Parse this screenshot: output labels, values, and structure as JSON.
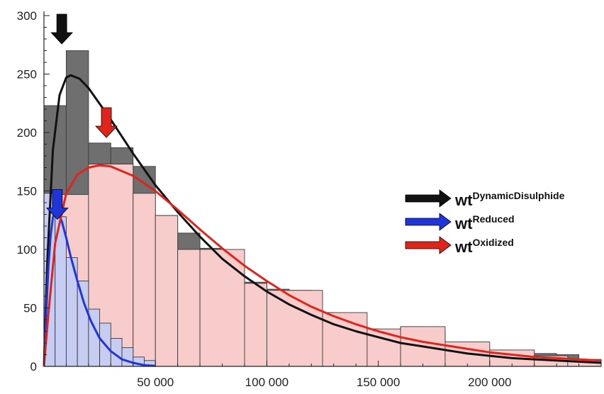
{
  "chart_data": {
    "type": "bar",
    "x_ticks": [
      {
        "value": 50000,
        "label": "50 000"
      },
      {
        "value": 100000,
        "label": "100 000"
      },
      {
        "value": 150000,
        "label": "150 000"
      },
      {
        "value": 200000,
        "label": "200 000"
      }
    ],
    "y_ticks": [
      {
        "value": 0,
        "label": "0"
      },
      {
        "value": 50,
        "label": "50"
      },
      {
        "value": 100,
        "label": "100"
      },
      {
        "value": 150,
        "label": "150"
      },
      {
        "value": 200,
        "label": "200"
      },
      {
        "value": 250,
        "label": "250"
      },
      {
        "value": 300,
        "label": "300"
      }
    ],
    "xlim": [
      0,
      250000
    ],
    "ylim": [
      0,
      300
    ],
    "grid": false,
    "histograms": [
      {
        "key": "dynamic",
        "color": "#6f6f6f",
        "bins": [
          {
            "x0": 0,
            "x1": 10000,
            "value": 223
          },
          {
            "x0": 10000,
            "x1": 20000,
            "value": 270
          },
          {
            "x0": 20000,
            "x1": 30000,
            "value": 191
          },
          {
            "x0": 30000,
            "x1": 40000,
            "value": 187
          },
          {
            "x0": 40000,
            "x1": 50000,
            "value": 171
          },
          {
            "x0": 50000,
            "x1": 60000,
            "value": 129
          },
          {
            "x0": 60000,
            "x1": 70000,
            "value": 114
          },
          {
            "x0": 70000,
            "x1": 80000,
            "value": 101
          },
          {
            "x0": 80000,
            "x1": 90000,
            "value": 84
          },
          {
            "x0": 90000,
            "x1": 100000,
            "value": 72
          },
          {
            "x0": 100000,
            "x1": 110000,
            "value": 66
          },
          {
            "x0": 110000,
            "x1": 120000,
            "value": 65
          },
          {
            "x0": 120000,
            "x1": 130000,
            "value": 46
          },
          {
            "x0": 130000,
            "x1": 140000,
            "value": 45
          },
          {
            "x0": 140000,
            "x1": 150000,
            "value": 32
          },
          {
            "x0": 150000,
            "x1": 160000,
            "value": 31
          },
          {
            "x0": 160000,
            "x1": 170000,
            "value": 34
          },
          {
            "x0": 170000,
            "x1": 180000,
            "value": 30
          },
          {
            "x0": 180000,
            "x1": 190000,
            "value": 20
          },
          {
            "x0": 190000,
            "x1": 200000,
            "value": 15
          },
          {
            "x0": 200000,
            "x1": 210000,
            "value": 14
          },
          {
            "x0": 210000,
            "x1": 220000,
            "value": 13
          },
          {
            "x0": 220000,
            "x1": 230000,
            "value": 11
          },
          {
            "x0": 230000,
            "x1": 240000,
            "value": 10
          },
          {
            "x0": 240000,
            "x1": 250000,
            "value": 3
          }
        ]
      },
      {
        "key": "oxidized",
        "color": "#f9cccc",
        "bins": [
          {
            "x0": 0,
            "x1": 20000,
            "value": 147
          },
          {
            "x0": 20000,
            "x1": 40000,
            "value": 173
          },
          {
            "x0": 40000,
            "x1": 50000,
            "value": 148
          },
          {
            "x0": 50000,
            "x1": 60000,
            "value": 129
          },
          {
            "x0": 60000,
            "x1": 70000,
            "value": 100
          },
          {
            "x0": 70000,
            "x1": 90000,
            "value": 100
          },
          {
            "x0": 90000,
            "x1": 100000,
            "value": 71
          },
          {
            "x0": 100000,
            "x1": 125000,
            "value": 65
          },
          {
            "x0": 125000,
            "x1": 145000,
            "value": 46
          },
          {
            "x0": 145000,
            "x1": 160000,
            "value": 32
          },
          {
            "x0": 160000,
            "x1": 180000,
            "value": 34
          },
          {
            "x0": 180000,
            "x1": 200000,
            "value": 21
          },
          {
            "x0": 200000,
            "x1": 220000,
            "value": 14
          },
          {
            "x0": 220000,
            "x1": 235000,
            "value": 9
          },
          {
            "x0": 235000,
            "x1": 250000,
            "value": 6
          }
        ]
      },
      {
        "key": "reduced",
        "color": "#c7cdf2",
        "bins": [
          {
            "x0": 0,
            "x1": 5000,
            "value": 148
          },
          {
            "x0": 5000,
            "x1": 10000,
            "value": 128
          },
          {
            "x0": 10000,
            "x1": 15000,
            "value": 93
          },
          {
            "x0": 15000,
            "x1": 20000,
            "value": 73
          },
          {
            "x0": 20000,
            "x1": 25000,
            "value": 49
          },
          {
            "x0": 25000,
            "x1": 30000,
            "value": 37
          },
          {
            "x0": 30000,
            "x1": 35000,
            "value": 24
          },
          {
            "x0": 35000,
            "x1": 40000,
            "value": 16
          },
          {
            "x0": 40000,
            "x1": 45000,
            "value": 8
          },
          {
            "x0": 45000,
            "x1": 50000,
            "value": 5
          }
        ]
      }
    ],
    "series": [
      {
        "key": "dynamic",
        "label_base": "wt",
        "label_sup": "DynamicDisulphide",
        "color": "#111111",
        "curve": [
          [
            0,
            0
          ],
          [
            1500,
            90
          ],
          [
            4000,
            185
          ],
          [
            7000,
            232
          ],
          [
            10000,
            247
          ],
          [
            12000,
            249
          ],
          [
            16000,
            246
          ],
          [
            20000,
            238
          ],
          [
            30000,
            211
          ],
          [
            40000,
            182
          ],
          [
            50000,
            155
          ],
          [
            60000,
            132
          ],
          [
            70000,
            111
          ],
          [
            80000,
            92
          ],
          [
            90000,
            77
          ],
          [
            100000,
            64
          ],
          [
            110000,
            53
          ],
          [
            120000,
            44
          ],
          [
            130000,
            36
          ],
          [
            140000,
            30
          ],
          [
            150000,
            25
          ],
          [
            160000,
            20
          ],
          [
            170000,
            17
          ],
          [
            180000,
            14
          ],
          [
            190000,
            11
          ],
          [
            200000,
            9
          ],
          [
            210000,
            7
          ],
          [
            220000,
            6
          ],
          [
            230000,
            5
          ],
          [
            240000,
            4
          ],
          [
            250000,
            3
          ]
        ],
        "arrow": {
          "x": 8000,
          "y_tip": 300
        }
      },
      {
        "key": "reduced",
        "label_base": "wt",
        "label_sup": "Reduced",
        "color": "#1f35d9",
        "curve": [
          [
            0,
            0
          ],
          [
            1000,
            45
          ],
          [
            2000,
            85
          ],
          [
            3000,
            112
          ],
          [
            4000,
            127
          ],
          [
            5000,
            133
          ],
          [
            6000,
            132
          ],
          [
            8000,
            124
          ],
          [
            10000,
            110
          ],
          [
            12000,
            94
          ],
          [
            15000,
            73
          ],
          [
            18000,
            54
          ],
          [
            21000,
            39
          ],
          [
            25000,
            24
          ],
          [
            30000,
            13
          ],
          [
            35000,
            6
          ],
          [
            40000,
            3
          ],
          [
            45000,
            1
          ],
          [
            50000,
            0.5
          ]
        ],
        "arrow": {
          "x": 6000,
          "y_tip": 150
        }
      },
      {
        "key": "oxidized",
        "label_base": "wt",
        "label_sup": "Oxidized",
        "color": "#e0241b",
        "curve": [
          [
            0,
            0
          ],
          [
            2000,
            45
          ],
          [
            5000,
            105
          ],
          [
            10000,
            148
          ],
          [
            15000,
            164
          ],
          [
            20000,
            170
          ],
          [
            25000,
            172
          ],
          [
            30000,
            171
          ],
          [
            40000,
            163
          ],
          [
            50000,
            150
          ],
          [
            60000,
            134
          ],
          [
            70000,
            117
          ],
          [
            80000,
            101
          ],
          [
            90000,
            86
          ],
          [
            100000,
            73
          ],
          [
            110000,
            61
          ],
          [
            120000,
            51
          ],
          [
            130000,
            43
          ],
          [
            140000,
            36
          ],
          [
            150000,
            30
          ],
          [
            160000,
            25
          ],
          [
            170000,
            21
          ],
          [
            180000,
            18
          ],
          [
            190000,
            15
          ],
          [
            200000,
            12
          ],
          [
            210000,
            10
          ],
          [
            220000,
            8
          ],
          [
            230000,
            7
          ],
          [
            240000,
            6
          ],
          [
            250000,
            5
          ]
        ],
        "arrow": {
          "x": 28000,
          "y_tip": 220
        }
      }
    ],
    "legend": {
      "position": "right"
    }
  }
}
